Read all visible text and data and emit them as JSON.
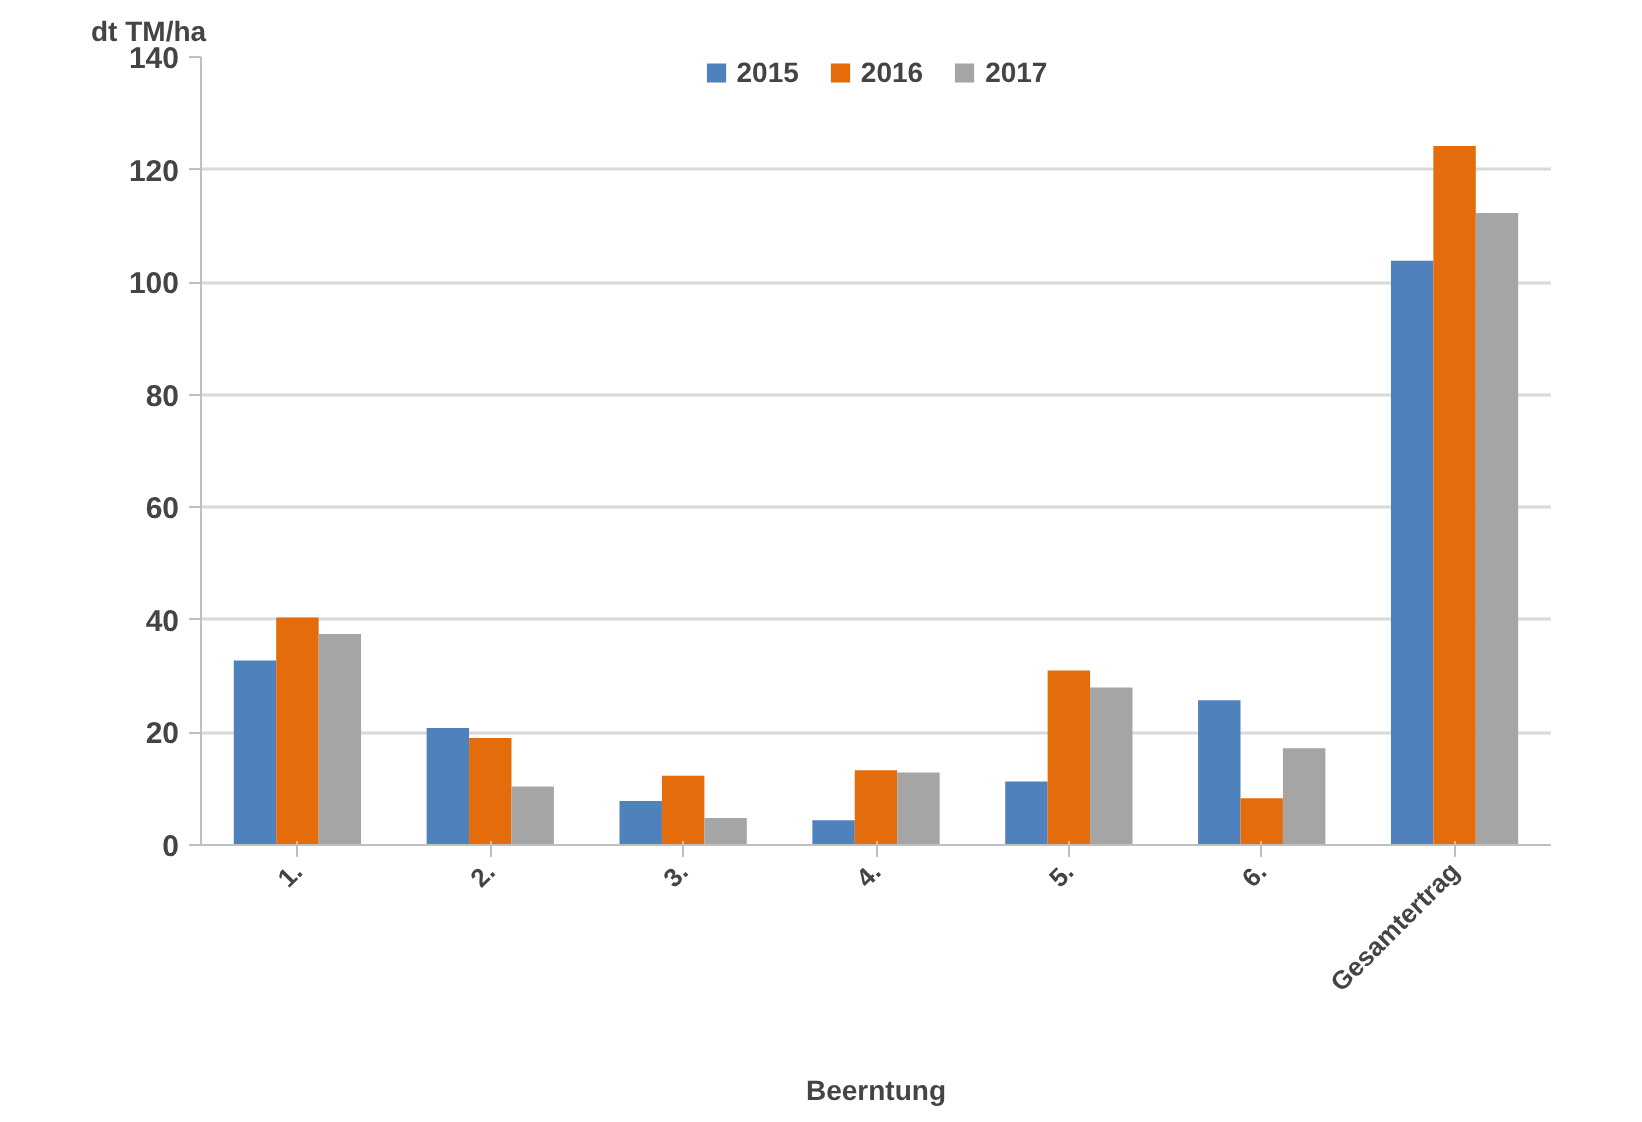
{
  "chart_data": {
    "type": "bar",
    "xlabel": "Beerntung",
    "ylabel": "dt TM/ha",
    "categories": [
      "1.",
      "2.",
      "3.",
      "4.",
      "5.",
      "6.",
      "Gesamtertrag"
    ],
    "series": [
      {
        "name": "2015",
        "color": "#4f81bd",
        "values": [
          32.8,
          20.8,
          7.8,
          4.4,
          11.3,
          25.7,
          103.8
        ]
      },
      {
        "name": "2016",
        "color": "#e46c0a",
        "values": [
          40.4,
          19.0,
          12.3,
          13.3,
          31.0,
          8.3,
          124.2
        ]
      },
      {
        "name": "2017",
        "color": "#a5a5a5",
        "values": [
          37.5,
          10.4,
          4.8,
          12.9,
          28.0,
          17.2,
          112.3
        ]
      }
    ],
    "ylim": [
      0,
      140
    ],
    "yticks": [
      0,
      20,
      40,
      60,
      80,
      100,
      120,
      140
    ],
    "grid": "y",
    "legend": "top"
  }
}
